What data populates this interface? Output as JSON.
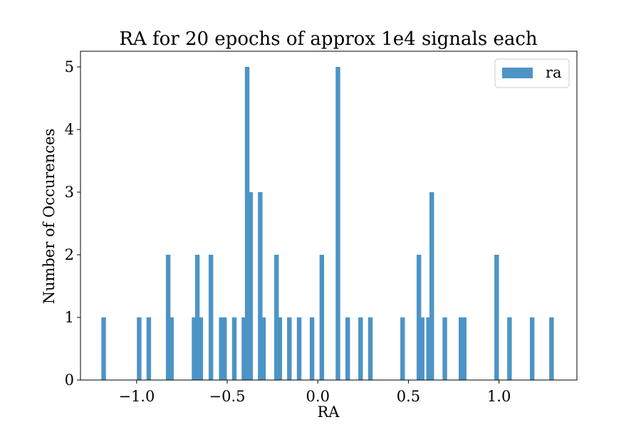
{
  "chart_data": {
    "type": "bar",
    "title": "RA for 20 epochs of approx 1e4 signals each",
    "xlabel": "RA",
    "ylabel": "Number of Occurences",
    "xlim": [
      -1.31,
      1.43
    ],
    "ylim": [
      0,
      5.25
    ],
    "bin_width": 0.0252,
    "xticks": [
      -1.0,
      -0.5,
      0.0,
      0.5,
      1.0
    ],
    "xtick_labels": [
      "−1.0",
      "−0.5",
      "0.0",
      "0.5",
      "1.0"
    ],
    "yticks": [
      0,
      1,
      2,
      3,
      4,
      5
    ],
    "ytick_labels": [
      "0",
      "1",
      "2",
      "3",
      "4",
      "5"
    ],
    "grid": false,
    "legend_position": "top-right",
    "series": [
      {
        "name": "ra",
        "color": "#4c94c6",
        "bins": [
          {
            "x": -1.182,
            "count": 1
          },
          {
            "x": -0.986,
            "count": 1
          },
          {
            "x": -0.933,
            "count": 1
          },
          {
            "x": -0.826,
            "count": 2
          },
          {
            "x": -0.808,
            "count": 1
          },
          {
            "x": -0.683,
            "count": 1
          },
          {
            "x": -0.665,
            "count": 2
          },
          {
            "x": -0.646,
            "count": 1
          },
          {
            "x": -0.59,
            "count": 2
          },
          {
            "x": -0.533,
            "count": 1
          },
          {
            "x": -0.515,
            "count": 1
          },
          {
            "x": -0.461,
            "count": 1
          },
          {
            "x": -0.408,
            "count": 1
          },
          {
            "x": -0.39,
            "count": 5
          },
          {
            "x": -0.371,
            "count": 3
          },
          {
            "x": -0.318,
            "count": 3
          },
          {
            "x": -0.3,
            "count": 1
          },
          {
            "x": -0.228,
            "count": 2
          },
          {
            "x": -0.21,
            "count": 1
          },
          {
            "x": -0.157,
            "count": 1
          },
          {
            "x": -0.103,
            "count": 1
          },
          {
            "x": -0.032,
            "count": 1
          },
          {
            "x": 0.022,
            "count": 2
          },
          {
            "x": 0.111,
            "count": 5
          },
          {
            "x": 0.165,
            "count": 1
          },
          {
            "x": 0.236,
            "count": 1
          },
          {
            "x": 0.29,
            "count": 1
          },
          {
            "x": 0.468,
            "count": 1
          },
          {
            "x": 0.558,
            "count": 2
          },
          {
            "x": 0.576,
            "count": 1
          },
          {
            "x": 0.611,
            "count": 1
          },
          {
            "x": 0.629,
            "count": 3
          },
          {
            "x": 0.701,
            "count": 1
          },
          {
            "x": 0.79,
            "count": 1
          },
          {
            "x": 0.808,
            "count": 1
          },
          {
            "x": 0.987,
            "count": 2
          },
          {
            "x": 1.058,
            "count": 1
          },
          {
            "x": 1.183,
            "count": 1
          },
          {
            "x": 1.29,
            "count": 1
          }
        ]
      }
    ]
  }
}
